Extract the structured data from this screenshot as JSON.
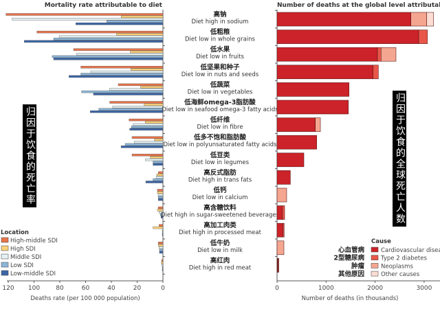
{
  "chart_data": [
    {
      "type": "bar",
      "orientation": "horizontal-reversed",
      "title": "Mortality rate attributable to diet",
      "xlabel": "Deaths rate (per 100 000 population)",
      "xlim": [
        0,
        120
      ],
      "xticks": [
        "120",
        "100",
        "80",
        "60",
        "40",
        "20",
        "0"
      ],
      "overlay_label": "归因于饮食的死亡率",
      "legend": {
        "title": "Location",
        "placement": "bottom-left"
      },
      "series": [
        {
          "name": "High-middle SDI",
          "color": "#e8744a",
          "values": [
            121.8,
            97.8,
            69.3,
            63.7,
            34.7,
            41.3,
            26.3,
            24.0,
            24.0,
            3.6,
            4.3,
            3.7,
            3.0,
            3.6,
            1.0
          ]
        },
        {
          "name": "High SDI",
          "color": "#fbd27a",
          "values": [
            32.4,
            36.0,
            25.3,
            24.9,
            17.3,
            14.6,
            13.7,
            6.6,
            9.8,
            4.8,
            4.3,
            4.3,
            7.7,
            3.6,
            1.2
          ]
        },
        {
          "name": "Middle SDI",
          "color": "#e4f0f4",
          "values": [
            117.0,
            80.5,
            67.0,
            56.0,
            41.4,
            39.0,
            23.1,
            22.2,
            13.7,
            5.3,
            3.7,
            3.0,
            0.5,
            3.0,
            0.8
          ]
        },
        {
          "name": "Low SDI",
          "color": "#8cb6d8",
          "values": [
            43.6,
            84.8,
            85.9,
            63.7,
            63.1,
            49.8,
            24.4,
            29.3,
            7.7,
            7.7,
            3.7,
            2.0,
            0.5,
            2.7,
            0.5
          ]
        },
        {
          "name": "Low-middle SDI",
          "color": "#3a65a6",
          "values": [
            67.6,
            107.6,
            84.8,
            72.9,
            53.9,
            56.4,
            25.8,
            32.5,
            7.7,
            13.3,
            3.6,
            1.5,
            0.5,
            2.7,
            0.5
          ]
        }
      ]
    },
    {
      "type": "bar",
      "orientation": "horizontal-stacked",
      "title": "Number of deaths at the global level attributable to diet",
      "xlabel": "Number of deaths (in thousands)",
      "xlim": [
        0,
        3300
      ],
      "xticks": [
        "0",
        "1000",
        "2000",
        "3000"
      ],
      "overlay_label": "归因于饮食的全球死亡人数",
      "legend": {
        "title": "Cause",
        "placement": "bottom-right"
      },
      "series": [
        {
          "name": "Cardiovascular diseases",
          "name_cn": "心血管病",
          "color": "#cc2229",
          "values": [
            2730,
            2890,
            2048,
            1959,
            1468,
            1454,
            781,
            809,
            547,
            271,
            0,
            110,
            120,
            0,
            15
          ]
        },
        {
          "name": "Type 2 diabetes",
          "name_cn": "2型糖尿病",
          "color": "#e8574a",
          "values": [
            0,
            177,
            74,
            107,
            0,
            0,
            0,
            0,
            0,
            0,
            0,
            44,
            25,
            0,
            8
          ]
        },
        {
          "name": "Neoplasms",
          "name_cn": "肿瘤",
          "color": "#f4a690",
          "values": [
            323,
            0,
            304,
            0,
            0,
            0,
            103,
            0,
            0,
            0,
            196,
            0,
            0,
            140,
            15
          ]
        },
        {
          "name": "Other causes",
          "name_cn": "其他原因",
          "color": "#fbddd3",
          "values": [
            141,
            0,
            0,
            0,
            0,
            0,
            0,
            0,
            0,
            0,
            0,
            0,
            0,
            0,
            0
          ]
        }
      ]
    }
  ],
  "categories": [
    {
      "cn": "高钠",
      "en": "Diet high in sodium"
    },
    {
      "cn": "低粗粮",
      "en": "Diet low in whole grains"
    },
    {
      "cn": "低水果",
      "en": "Diet low in fruits"
    },
    {
      "cn": "低坚果和种子",
      "en": "Diet low in nuts and seeds"
    },
    {
      "cn": "低蔬菜",
      "en": "Diet low in vegetables"
    },
    {
      "cn": "低海鲜omega-3脂肪酸",
      "en": "Diet low in seafood omega-3 fatty acids"
    },
    {
      "cn": "低纤维",
      "en": "Diet low in fibre"
    },
    {
      "cn": "低多不饱和脂肪酸",
      "en": "Diet low in polyunsaturated fatty acids"
    },
    {
      "cn": "低豆类",
      "en": "Diet low in legumes"
    },
    {
      "cn": "高反式脂肪",
      "en": "Diet high in trans fats"
    },
    {
      "cn": "低钙",
      "en": "Diet low in calcium"
    },
    {
      "cn": "高含糖饮料",
      "en": "Diet high in sugar-sweetened beverages"
    },
    {
      "cn": "高加工肉类",
      "en": "Diet high in processed meat"
    },
    {
      "cn": "低牛奶",
      "en": "Diet low in milk"
    },
    {
      "cn": "高红肉",
      "en": "Diet high in red meat"
    }
  ]
}
